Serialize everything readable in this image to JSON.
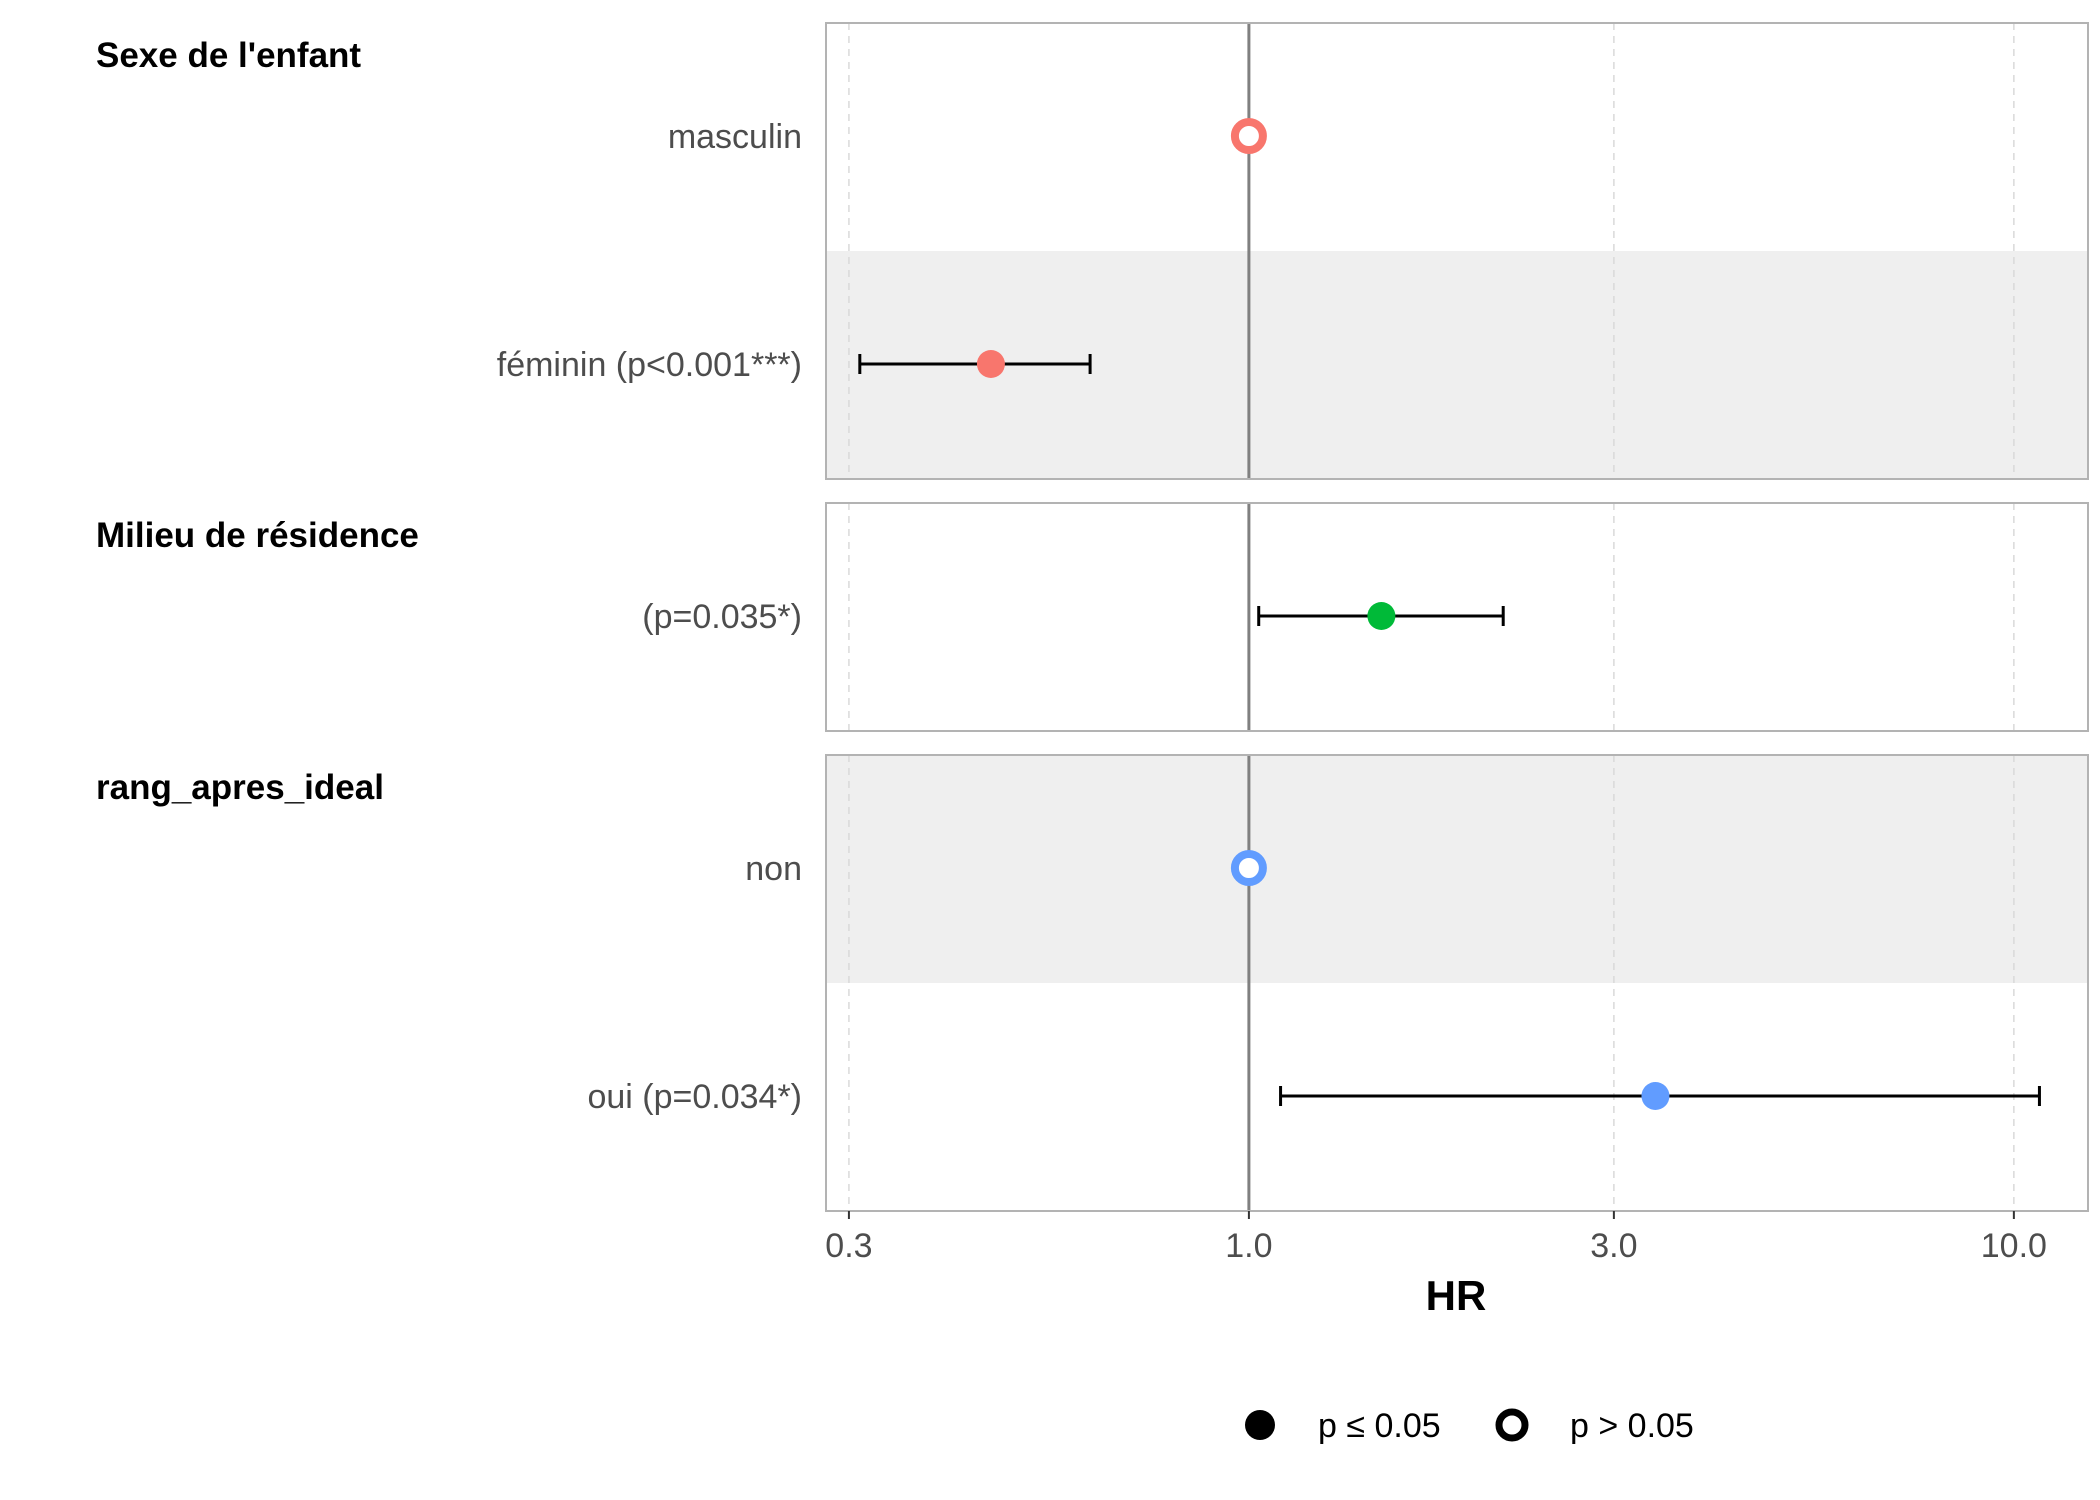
{
  "chart_data": {
    "type": "forest",
    "xlabel": "HR",
    "x_scale": "log",
    "xlim": [
      0.28,
      12.5
    ],
    "x_ticks": [
      0.3,
      1.0,
      3.0,
      10.0
    ],
    "x_tick_labels": [
      "0.3",
      "1.0",
      "3.0",
      "10.0"
    ],
    "reference_line": 1.0,
    "grid": true,
    "groups": [
      {
        "title": "Sexe de l'enfant",
        "color": "#F8766D",
        "rows": [
          {
            "label": "masculin",
            "hr": 1.0,
            "ci": null,
            "significant": false,
            "shaded": false
          },
          {
            "label": "féminin (p<0.001***)",
            "hr": 0.46,
            "ci": [
              0.31,
              0.62
            ],
            "significant": true,
            "shaded": true
          }
        ]
      },
      {
        "title": "Milieu de résidence",
        "color": "#00BA38",
        "rows": [
          {
            "label": "(p=0.035*)",
            "hr": 1.49,
            "ci": [
              1.03,
              2.15
            ],
            "significant": true,
            "shaded": false
          }
        ]
      },
      {
        "title": "rang_apres_ideal",
        "color": "#619CFF",
        "rows": [
          {
            "label": "non",
            "hr": 1.0,
            "ci": null,
            "significant": false,
            "shaded": true
          },
          {
            "label": "oui (p=0.034*)",
            "hr": 3.4,
            "ci": [
              1.1,
              10.8
            ],
            "significant": true,
            "shaded": false
          }
        ]
      }
    ],
    "legend": {
      "position": "bottom",
      "items": [
        {
          "label": "p ≤ 0.05",
          "marker": "filled-circle"
        },
        {
          "label": "p > 0.05",
          "marker": "open-circle"
        }
      ]
    }
  }
}
